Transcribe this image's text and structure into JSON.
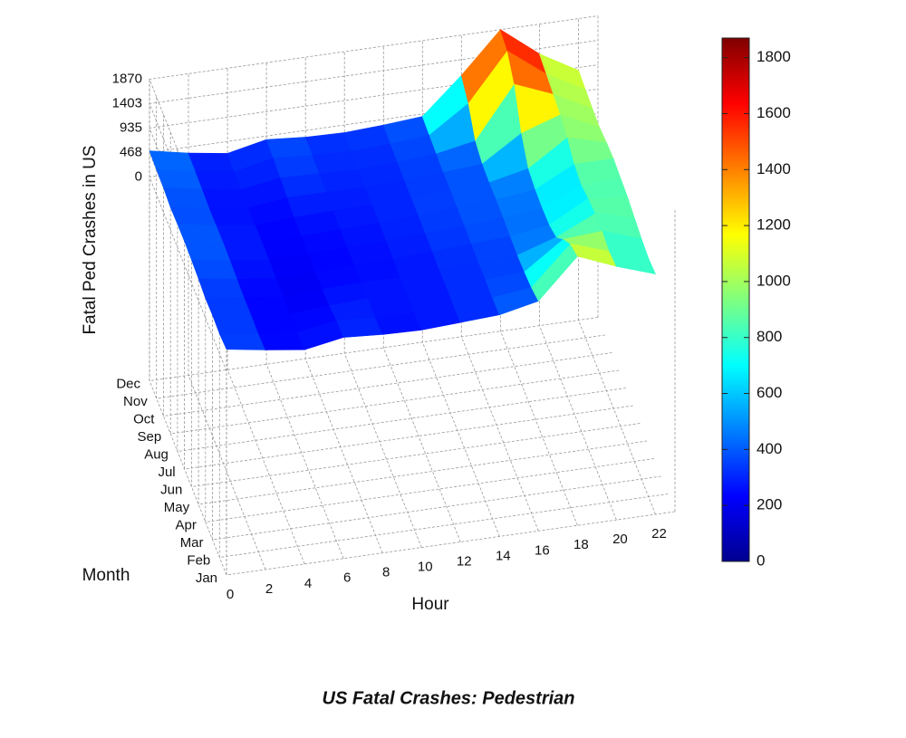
{
  "chart_data": {
    "type": "surface",
    "title": "US Fatal Crashes: Pedestrian",
    "xlabel": "Hour",
    "ylabel": "Month",
    "zlabel": "Fatal Ped Crashes in US",
    "x": [
      0,
      2,
      4,
      6,
      8,
      10,
      12,
      14,
      16,
      18,
      20,
      22
    ],
    "xlim": [
      0,
      23
    ],
    "xticks": [
      0,
      2,
      4,
      6,
      8,
      10,
      12,
      14,
      16,
      18,
      20,
      22
    ],
    "categories": [
      "Jan",
      "Feb",
      "Mar",
      "Apr",
      "May",
      "Jun",
      "Jul",
      "Aug",
      "Sep",
      "Oct",
      "Nov",
      "Dec"
    ],
    "zlim": [
      -3900,
      1870
    ],
    "zticks": [
      0,
      468,
      935,
      1403,
      1870
    ],
    "z": [
      [
        420,
        300,
        200,
        330,
        280,
        260,
        300,
        340,
        500,
        1250,
        950,
        700
      ],
      [
        380,
        280,
        190,
        320,
        260,
        250,
        290,
        330,
        420,
        1150,
        900,
        660
      ],
      [
        400,
        290,
        200,
        260,
        300,
        260,
        300,
        340,
        380,
        900,
        950,
        700
      ],
      [
        380,
        280,
        190,
        240,
        260,
        250,
        290,
        330,
        360,
        600,
        950,
        760
      ],
      [
        420,
        300,
        210,
        230,
        250,
        260,
        300,
        350,
        380,
        500,
        900,
        820
      ],
      [
        440,
        320,
        220,
        230,
        250,
        270,
        310,
        360,
        400,
        480,
        820,
        850
      ],
      [
        460,
        330,
        230,
        240,
        260,
        280,
        320,
        370,
        410,
        500,
        880,
        880
      ],
      [
        450,
        320,
        220,
        260,
        280,
        280,
        320,
        370,
        400,
        560,
        1050,
        850
      ],
      [
        430,
        310,
        210,
        300,
        300,
        280,
        320,
        360,
        420,
        900,
        1150,
        800
      ],
      [
        470,
        330,
        220,
        340,
        320,
        290,
        330,
        380,
        520,
        1500,
        1200,
        820
      ],
      [
        480,
        340,
        230,
        380,
        330,
        300,
        340,
        400,
        900,
        1800,
        1250,
        850
      ],
      [
        500,
        350,
        240,
        400,
        340,
        320,
        360,
        420,
        1100,
        1870,
        1300,
        880
      ]
    ],
    "colormap": "jet",
    "colorbar": {
      "lim": [
        0,
        1870
      ],
      "ticks": [
        0,
        200,
        400,
        600,
        800,
        1000,
        1200,
        1400,
        1600,
        1800
      ]
    }
  }
}
